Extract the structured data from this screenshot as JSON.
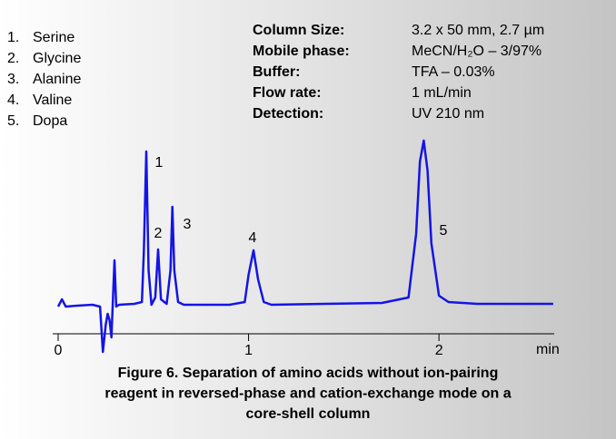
{
  "chart_data": {
    "type": "line",
    "compounds": [
      {
        "number": "1.",
        "name": "Serine"
      },
      {
        "number": "2.",
        "name": "Glycine"
      },
      {
        "number": "3.",
        "name": "Alanine"
      },
      {
        "number": "4.",
        "name": "Valine"
      },
      {
        "number": "5.",
        "name": "Dopa"
      }
    ],
    "conditions": [
      {
        "label": "Column Size:",
        "value": "3.2 x 50 mm, 2.7 µm"
      },
      {
        "label": "Mobile phase:",
        "value": "MeCN/H₂O – 3/97%"
      },
      {
        "label": "Buffer:",
        "value": "TFA – 0.03%"
      },
      {
        "label": "Flow rate:",
        "value": "1 mL/min"
      },
      {
        "label": "Detection:",
        "value": "UV 210 nm"
      }
    ],
    "annotations": [
      "1",
      "2",
      "3",
      "4",
      "5"
    ],
    "xlabel": "min",
    "x": [
      0,
      0.02,
      0.04,
      0.1,
      0.18,
      0.22,
      0.235,
      0.25,
      0.26,
      0.27,
      0.28,
      0.29,
      0.296,
      0.305,
      0.32,
      0.4,
      0.44,
      0.45,
      0.463,
      0.475,
      0.49,
      0.51,
      0.525,
      0.54,
      0.57,
      0.59,
      0.6,
      0.61,
      0.63,
      0.66,
      0.9,
      0.98,
      1.0,
      1.026,
      1.05,
      1.08,
      1.12,
      1.4,
      1.7,
      1.84,
      1.88,
      1.9,
      1.92,
      1.94,
      1.96,
      2.0,
      2.05,
      2.2,
      2.6
    ],
    "values": [
      0,
      8,
      0,
      1,
      2,
      0,
      -50,
      -20,
      -8,
      -15,
      -34,
      20,
      51,
      0,
      2,
      3,
      5,
      60,
      171,
      40,
      2,
      10,
      63,
      8,
      3,
      40,
      110,
      40,
      5,
      2,
      2,
      5,
      35,
      62,
      30,
      5,
      2,
      3,
      4,
      10,
      80,
      160,
      183,
      150,
      70,
      12,
      5,
      3,
      3
    ],
    "color": "#1414e6",
    "xlim": [
      -0.03,
      2.61
    ],
    "xticks": [
      0,
      1,
      2
    ],
    "ylim": [
      -55,
      190
    ],
    "caption": [
      "Figure 6. Separation of amino acids without ion-pairing",
      "reagent in reversed-phase and cation-exchange mode on a",
      "core-shell column"
    ]
  }
}
